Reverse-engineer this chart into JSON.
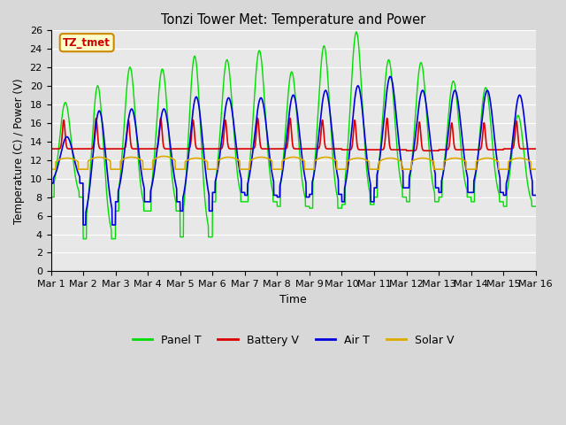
{
  "title": "Tonzi Tower Met: Temperature and Power",
  "xlabel": "Time",
  "ylabel": "Temperature (C) / Power (V)",
  "ylim": [
    0,
    26
  ],
  "yticks": [
    0,
    2,
    4,
    6,
    8,
    10,
    12,
    14,
    16,
    18,
    20,
    22,
    24,
    26
  ],
  "xtick_labels": [
    "Mar 1",
    "Mar 2",
    "Mar 3",
    "Mar 4",
    "Mar 5",
    "Mar 6",
    "Mar 7",
    "Mar 8",
    "Mar 9",
    "Mar 10",
    "Mar 11",
    "Mar 12",
    "Mar 13",
    "Mar 14",
    "Mar 15",
    "Mar 16"
  ],
  "watermark_text": "TZ_tmet",
  "fig_facecolor": "#d8d8d8",
  "ax_facecolor": "#e8e8e8",
  "grid_color": "#ffffff",
  "line_colors": {
    "panel_t": "#00dd00",
    "battery_v": "#dd0000",
    "air_t": "#0000dd",
    "solar_v": "#ddaa00"
  },
  "n_days": 15,
  "n_points_per_day": 144,
  "figsize": [
    6.4,
    4.8
  ],
  "dpi": 100
}
